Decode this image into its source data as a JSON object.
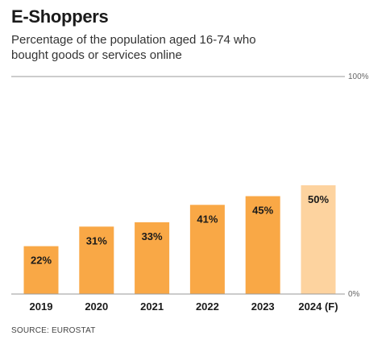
{
  "chart_data": {
    "type": "bar",
    "title": "E-Shoppers",
    "subtitle": "Percentage of the population aged 16-74 who bought goods or services online",
    "categories": [
      "2019",
      "2020",
      "2021",
      "2022",
      "2023",
      "2024 (F)"
    ],
    "values": [
      22,
      31,
      33,
      41,
      45,
      50
    ],
    "data_labels": [
      "22%",
      "31%",
      "33%",
      "41%",
      "45%",
      "50%"
    ],
    "forecast": [
      false,
      false,
      false,
      false,
      false,
      true
    ],
    "ylim": [
      0,
      100
    ],
    "y_tick_labels": {
      "top": "100%",
      "bottom": "0%"
    },
    "xlabel": "",
    "ylabel": "",
    "grid": false,
    "colors": {
      "actual": "#f9a846",
      "forecast": "#fdd39f",
      "axis": "#9a9a9a"
    }
  },
  "source": "SOURCE: EUROSTAT"
}
